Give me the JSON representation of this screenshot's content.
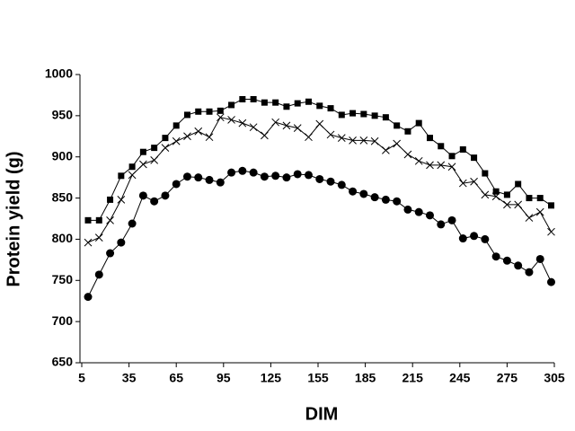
{
  "chart_data": {
    "type": "line",
    "xlabel": "DIM",
    "ylabel": "Protein yield (g)",
    "x": [
      9,
      16,
      23,
      30,
      37,
      44,
      51,
      58,
      65,
      72,
      79,
      86,
      93,
      100,
      107,
      114,
      121,
      128,
      135,
      142,
      149,
      156,
      163,
      170,
      177,
      184,
      191,
      198,
      205,
      212,
      219,
      226,
      233,
      240,
      247,
      254,
      261,
      268,
      275,
      282,
      289,
      296,
      303
    ],
    "series": [
      {
        "color": "#000000",
        "marker": "square",
        "values": [
          823,
          823,
          848,
          877,
          888,
          906,
          911,
          923,
          938,
          951,
          955,
          955,
          956,
          963,
          970,
          970,
          966,
          966,
          961,
          965,
          967,
          962,
          959,
          951,
          953,
          952,
          950,
          948,
          938,
          931,
          941,
          923,
          913,
          901,
          909,
          899,
          880,
          858,
          854,
          867,
          850,
          850,
          841
        ]
      },
      {
        "color": "#000000",
        "marker": "x",
        "values": [
          796,
          802,
          823,
          848,
          878,
          891,
          896,
          911,
          919,
          925,
          931,
          924,
          948,
          945,
          941,
          936,
          926,
          942,
          938,
          935,
          924,
          940,
          927,
          923,
          920,
          920,
          919,
          908,
          916,
          903,
          895,
          890,
          890,
          888,
          868,
          870,
          854,
          852,
          842,
          842,
          826,
          833,
          809
        ]
      },
      {
        "color": "#000000",
        "marker": "circle",
        "values": [
          730,
          757,
          783,
          796,
          819,
          853,
          846,
          853,
          867,
          876,
          875,
          872,
          869,
          881,
          883,
          881,
          876,
          877,
          875,
          879,
          878,
          873,
          870,
          866,
          858,
          855,
          851,
          848,
          846,
          836,
          833,
          829,
          818,
          823,
          801,
          804,
          800,
          779,
          774,
          768,
          760,
          776,
          748
        ]
      }
    ],
    "xlim": [
      5,
      305
    ],
    "xticks": [
      5,
      35,
      65,
      95,
      125,
      155,
      185,
      215,
      245,
      275,
      305
    ],
    "ylim": [
      650,
      1000
    ],
    "yticks": [
      650,
      700,
      750,
      800,
      850,
      900,
      950,
      1000
    ]
  }
}
